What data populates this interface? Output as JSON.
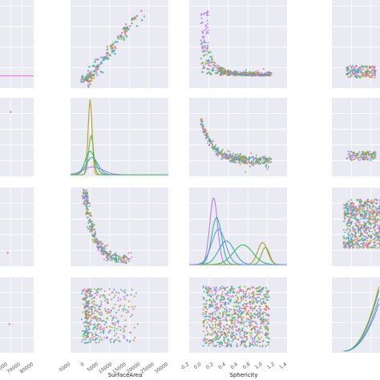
{
  "chart_data": {
    "type": "scatter",
    "kind": "pairplot",
    "grid": true,
    "style": "seaborn darkgrid, hue-coloured",
    "palette": [
      "#e9727f",
      "#d18a3c",
      "#b0a03a",
      "#7fae3c",
      "#3eb564",
      "#38b29a",
      "#3aa6c2",
      "#6f93e6",
      "#b37ee8",
      "#e56ad3"
    ],
    "xlabels": {
      "col2": "SurfaceArea",
      "col3": "Sphericity"
    },
    "xticks": {
      "col1": [
        "60000",
        "70000",
        "80000"
      ],
      "col2": [
        "-5000",
        "0",
        "5000",
        "10000",
        "15000",
        "20000",
        "25000",
        "30000"
      ],
      "col3": [
        "-0.2",
        "0.0",
        "0.2",
        "0.4",
        "0.6",
        "0.8",
        "1.0",
        "1.2",
        "1.4"
      ]
    },
    "xlim": {
      "col2": [
        -5000,
        30000
      ],
      "col3": [
        -0.2,
        1.4
      ]
    },
    "panels": [
      {
        "row": 0,
        "col": 1,
        "kind": "scatter",
        "desc": "positive linear trend",
        "x": [
          1000,
          2500,
          5000,
          9000,
          14000,
          22000
        ],
        "y": [
          0.05,
          0.15,
          0.3,
          0.5,
          0.7,
          0.95
        ]
      },
      {
        "row": 0,
        "col": 2,
        "kind": "scatter",
        "desc": "decay, dense band near bottom",
        "x": [
          0.1,
          0.2,
          0.4,
          0.6,
          0.8,
          1.0
        ],
        "y": [
          0.75,
          0.35,
          0.2,
          0.15,
          0.12,
          0.1
        ]
      },
      {
        "row": 1,
        "col": 1,
        "kind": "kde",
        "desc": "sharp peak near 0"
      },
      {
        "row": 1,
        "col": 2,
        "kind": "scatter",
        "desc": "decay curve",
        "x": [
          0.1,
          0.2,
          0.4,
          0.6,
          0.8,
          1.0
        ],
        "y": [
          0.7,
          0.3,
          0.15,
          0.12,
          0.1,
          0.09
        ]
      },
      {
        "row": 2,
        "col": 1,
        "kind": "scatter",
        "desc": "inverse relation",
        "x": [
          0,
          1000,
          2500,
          5000,
          10000,
          15000
        ],
        "y": [
          0.9,
          0.6,
          0.35,
          0.25,
          0.15,
          0.1
        ]
      },
      {
        "row": 2,
        "col": 2,
        "kind": "kde",
        "desc": "multi-modal densities per hue, peaks near 0.1, 0.3, 0.6, 0.8"
      },
      {
        "row": 2,
        "col": 3,
        "kind": "scatter",
        "desc": "dense filled block"
      },
      {
        "row": 3,
        "col": 2,
        "kind": "scatter",
        "desc": "dense filled block spanning 0.0 to 1.0"
      },
      {
        "row": 3,
        "col": 3,
        "kind": "kde",
        "desc": "rising right tail"
      }
    ]
  }
}
